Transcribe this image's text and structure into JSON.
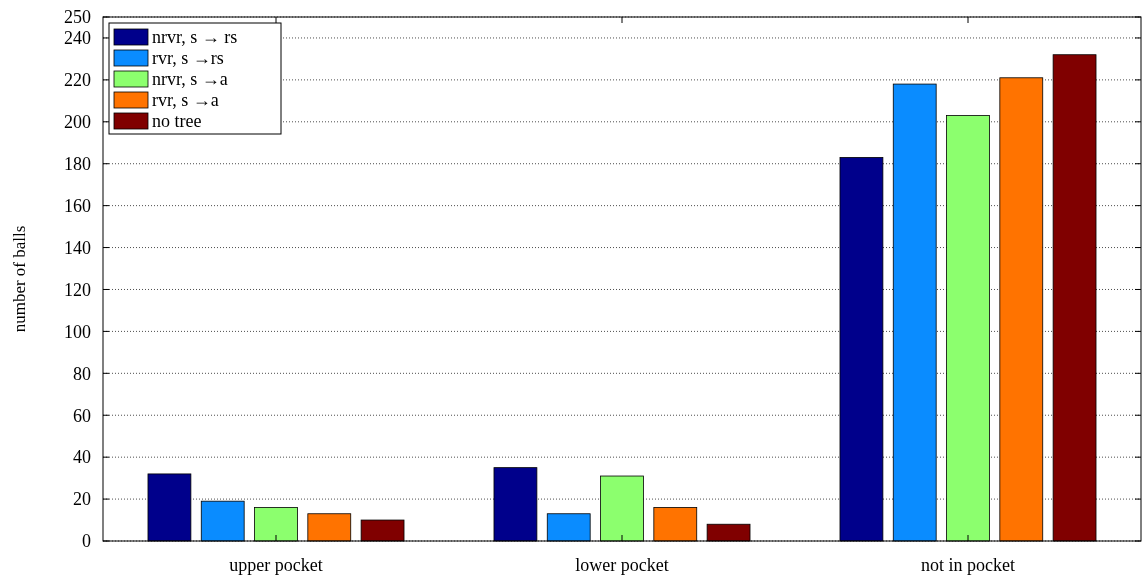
{
  "chart_data": {
    "type": "bar",
    "ylabel": "number of balls",
    "categories": [
      "upper pocket",
      "lower pocket",
      "not in pocket"
    ],
    "series": [
      {
        "name": "nrvr, s → rs",
        "color": "#00008b",
        "values": [
          32,
          35,
          183
        ]
      },
      {
        "name": "rvr, s →rs",
        "color": "#0a8cff",
        "values": [
          19,
          13,
          218
        ]
      },
      {
        "name": "nrvr, s →a",
        "color": "#8cff6e",
        "values": [
          16,
          31,
          203
        ]
      },
      {
        "name": "rvr, s →a",
        "color": "#ff7300",
        "values": [
          13,
          16,
          221
        ]
      },
      {
        "name": "no tree",
        "color": "#800000",
        "values": [
          10,
          8,
          232
        ]
      }
    ],
    "ylim": [
      0,
      250
    ],
    "yticks": [
      0,
      20,
      40,
      60,
      80,
      100,
      120,
      140,
      160,
      180,
      200,
      220,
      240,
      250
    ],
    "grid": "y",
    "legend": "top left"
  }
}
